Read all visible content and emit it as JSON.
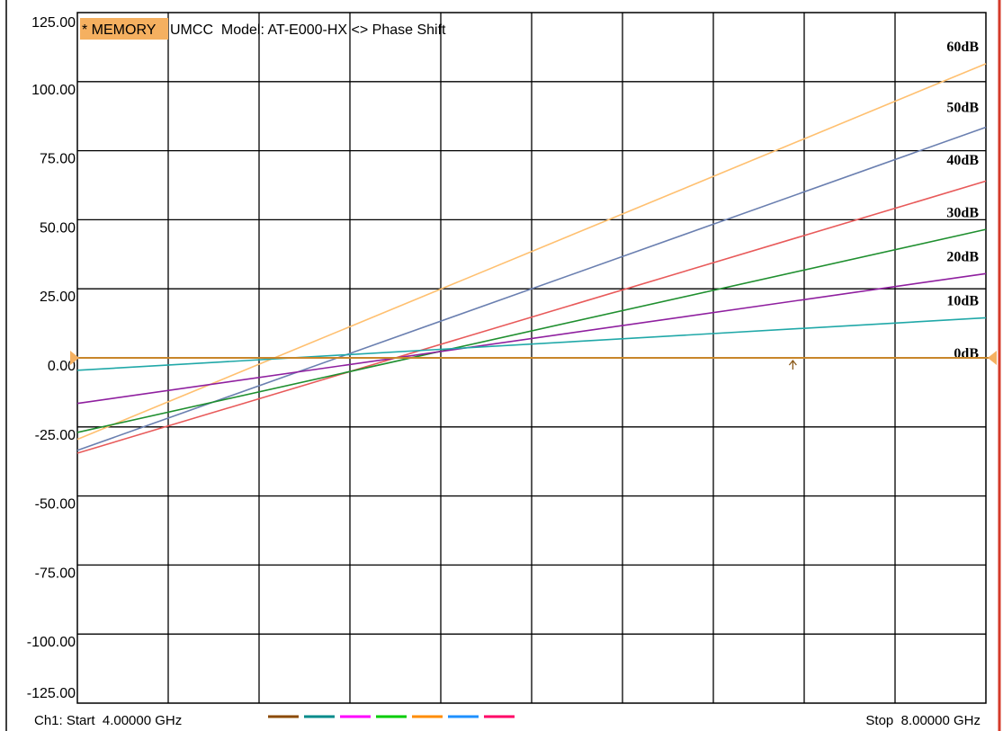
{
  "header": {
    "memory_badge": "* MEMORY",
    "title": "UMCC  Model: AT-E000-HX <> Phase Shift"
  },
  "footer": {
    "start": "Ch1: Start  4.00000 GHz",
    "stop": "Stop  8.00000 GHz",
    "swatch_colors": [
      "#8b4a00",
      "#008b8b",
      "#ff00ff",
      "#00cc00",
      "#ff8c00",
      "#1e90ff",
      "#ff0066"
    ]
  },
  "colors": {
    "reference": "#c8862a",
    "marker": "#f5b060",
    "right_border": "#d43a2a",
    "memory_badge": "#f5b060"
  },
  "chart_data": {
    "type": "line",
    "title": "UMCC  Model: AT-E000-HX <> Phase Shift",
    "xlabel": "",
    "ylabel": "",
    "xlim": [
      4.0,
      8.0
    ],
    "ylim": [
      -125,
      125
    ],
    "yticks": [
      "125.00",
      "100.00",
      "75.00",
      "50.00",
      "25.00",
      "0.00",
      "-25.00",
      "-50.00",
      "-75.00",
      "-100.00",
      "-125.00"
    ],
    "x_divisions": 10,
    "grid": true,
    "x": [
      4.0,
      8.0
    ],
    "series": [
      {
        "name": "60dB",
        "color": "#ffc070",
        "values": [
          -29.5,
          106.5
        ]
      },
      {
        "name": "50dB",
        "color": "#6a7fb0",
        "values": [
          -33.5,
          83.5
        ]
      },
      {
        "name": "40dB",
        "color": "#e85a5a",
        "values": [
          -34.5,
          64.0
        ]
      },
      {
        "name": "30dB",
        "color": "#1f8f2f",
        "values": [
          -27.0,
          46.5
        ]
      },
      {
        "name": "20dB",
        "color": "#8f1f9f",
        "values": [
          -16.5,
          30.5
        ]
      },
      {
        "name": "10dB",
        "color": "#20a8a8",
        "values": [
          -4.5,
          14.5
        ]
      },
      {
        "name": "0dB",
        "color": "#c8862a",
        "values": [
          0.0,
          0.0
        ]
      }
    ],
    "label_values": [
      111,
      89,
      70,
      51,
      35,
      19,
      0
    ],
    "marker_x": 7.15
  }
}
